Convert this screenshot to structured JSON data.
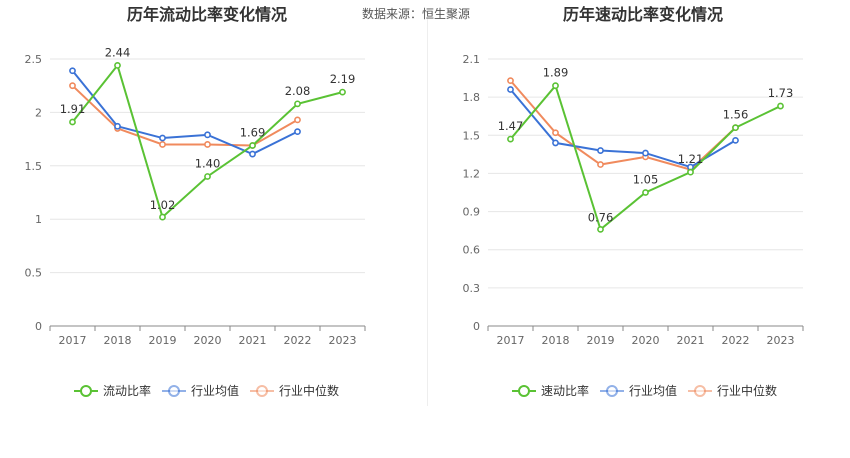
{
  "source": {
    "label": "数据来源：",
    "value": "恒生聚源"
  },
  "chart_data": [
    {
      "type": "line",
      "title": "历年流动比率变化情况",
      "categories": [
        "2017",
        "2018",
        "2019",
        "2020",
        "2021",
        "2022",
        "2023"
      ],
      "ylim": [
        0,
        2.5
      ],
      "yticks": [
        "0",
        "0.5",
        "1",
        "1.5",
        "2",
        "2.5"
      ],
      "ytick_values": [
        0,
        0.5,
        1,
        1.5,
        2,
        2.5
      ],
      "grid": true,
      "legend_position": "bottom",
      "series": [
        {
          "name": "流动比率",
          "color": "#5ac234",
          "labeled": true,
          "values": [
            1.91,
            2.44,
            1.02,
            1.4,
            1.69,
            2.08,
            2.19
          ],
          "labels": [
            "1.91",
            "2.44",
            "1.02",
            "1.40",
            "1.69",
            "2.08",
            "2.19"
          ]
        },
        {
          "name": "行业均值",
          "color": "#3a72d6",
          "labeled": false,
          "values": [
            2.39,
            1.87,
            1.76,
            1.79,
            1.61,
            1.82,
            null
          ]
        },
        {
          "name": "行业中位数",
          "color": "#f08a5d",
          "labeled": false,
          "values": [
            2.25,
            1.85,
            1.7,
            1.7,
            1.69,
            1.93,
            null
          ]
        }
      ]
    },
    {
      "type": "line",
      "title": "历年速动比率变化情况",
      "categories": [
        "2017",
        "2018",
        "2019",
        "2020",
        "2021",
        "2022",
        "2023"
      ],
      "ylim": [
        0,
        2.1
      ],
      "yticks": [
        "0",
        "0.3",
        "0.6",
        "0.9",
        "1.2",
        "1.5",
        "1.8",
        "2.1"
      ],
      "ytick_values": [
        0,
        0.3,
        0.6,
        0.9,
        1.2,
        1.5,
        1.8,
        2.1
      ],
      "grid": true,
      "legend_position": "bottom",
      "series": [
        {
          "name": "速动比率",
          "color": "#5ac234",
          "labeled": true,
          "values": [
            1.47,
            1.89,
            0.76,
            1.05,
            1.21,
            1.56,
            1.73
          ],
          "labels": [
            "1.47",
            "1.89",
            "0.76",
            "1.05",
            "1.21",
            "1.56",
            "1.73"
          ]
        },
        {
          "name": "行业均值",
          "color": "#3a72d6",
          "labeled": false,
          "values": [
            1.86,
            1.44,
            1.38,
            1.36,
            1.25,
            1.46,
            null
          ]
        },
        {
          "name": "行业中位数",
          "color": "#f08a5d",
          "labeled": false,
          "values": [
            1.93,
            1.52,
            1.27,
            1.33,
            1.23,
            1.56,
            null
          ]
        }
      ]
    }
  ]
}
